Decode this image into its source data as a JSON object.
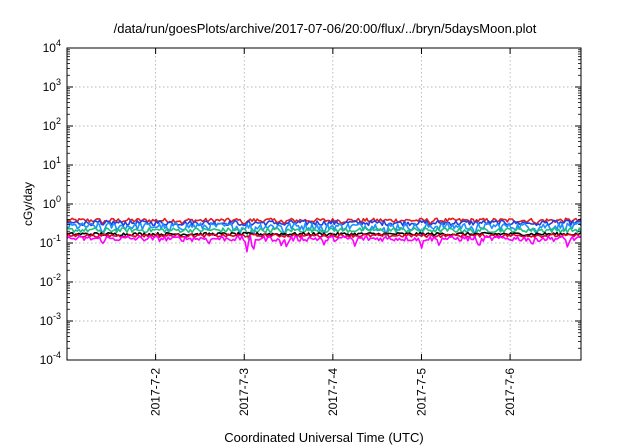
{
  "chart_data": {
    "type": "line",
    "title": "/data/run/goesPlots/archive/2017-07-06/20:00/flux/../bryn/5daysMoon.plot",
    "xlabel": "Coordinated Universal Time (UTC)",
    "ylabel": "cGy/day",
    "yscale": "log",
    "ylim": [
      0.0001,
      10000
    ],
    "xlim": [
      0,
      5.8
    ],
    "grid": true,
    "legend": "none",
    "y_tick_labels": [
      {
        "value": 0.0001,
        "base": "10",
        "exp": "-4"
      },
      {
        "value": 0.001,
        "base": "10",
        "exp": "-3"
      },
      {
        "value": 0.01,
        "base": "10",
        "exp": "-2"
      },
      {
        "value": 0.1,
        "base": "10",
        "exp": "-1"
      },
      {
        "value": 1,
        "base": "10",
        "exp": "0"
      },
      {
        "value": 10,
        "base": "10",
        "exp": "1"
      },
      {
        "value": 100,
        "base": "10",
        "exp": "2"
      },
      {
        "value": 1000,
        "base": "10",
        "exp": "3"
      },
      {
        "value": 10000,
        "base": "10",
        "exp": "4"
      }
    ],
    "x_ticks": [
      {
        "value": 1,
        "label": "2017-7-2"
      },
      {
        "value": 2,
        "label": "2017-7-3"
      },
      {
        "value": 3,
        "label": "2017-7-4"
      },
      {
        "value": 4,
        "label": "2017-7-5"
      },
      {
        "value": 5,
        "label": "2017-7-6"
      }
    ],
    "series": [
      {
        "color": "#e41a1c",
        "level": 0.38,
        "jitter": 0.05,
        "dips": [
          [
            0.4,
            0.3
          ],
          [
            1.3,
            0.3
          ],
          [
            2.0,
            0.28
          ],
          [
            2.45,
            0.3
          ],
          [
            3.1,
            0.3
          ],
          [
            4.1,
            0.3
          ],
          [
            5.3,
            0.3
          ]
        ]
      },
      {
        "color": "#2040e0",
        "level": 0.33,
        "jitter": 0.05,
        "dips": [
          [
            0.4,
            0.28
          ],
          [
            1.3,
            0.28
          ],
          [
            2.0,
            0.26
          ],
          [
            2.45,
            0.28
          ],
          [
            3.1,
            0.28
          ],
          [
            4.1,
            0.28
          ],
          [
            5.3,
            0.28
          ]
        ]
      },
      {
        "color": "#1e90ff",
        "level": 0.27,
        "jitter": 0.06,
        "dips": [
          [
            0.4,
            0.16
          ],
          [
            1.15,
            0.17
          ],
          [
            1.95,
            0.16
          ],
          [
            2.1,
            0.13
          ],
          [
            2.45,
            0.14
          ],
          [
            2.9,
            0.15
          ],
          [
            3.6,
            0.15
          ],
          [
            4.0,
            0.14
          ],
          [
            4.6,
            0.15
          ],
          [
            5.3,
            0.15
          ]
        ]
      },
      {
        "color": "#20c080",
        "level": 0.215,
        "jitter": 0.03,
        "dips": [
          [
            0.4,
            0.15
          ],
          [
            2.05,
            0.12
          ],
          [
            2.45,
            0.13
          ],
          [
            3.6,
            0.13
          ],
          [
            4.6,
            0.13
          ]
        ]
      },
      {
        "color": "#000000",
        "level": 0.17,
        "jitter": 0.015,
        "dips": []
      },
      {
        "color": "#e8002a",
        "level": 0.155,
        "jitter": 0.015,
        "dips": []
      },
      {
        "color": "#ff00ff",
        "level": 0.13,
        "jitter": 0.02,
        "dips": [
          [
            0.4,
            0.09
          ],
          [
            1.6,
            0.09
          ],
          [
            2.03,
            0.06
          ],
          [
            2.1,
            0.05
          ],
          [
            2.42,
            0.08
          ],
          [
            2.48,
            0.07
          ],
          [
            2.9,
            0.09
          ],
          [
            3.25,
            0.08
          ],
          [
            4.0,
            0.07
          ],
          [
            4.2,
            0.08
          ],
          [
            4.65,
            0.07
          ],
          [
            5.25,
            0.08
          ],
          [
            5.65,
            0.07
          ]
        ]
      }
    ]
  }
}
